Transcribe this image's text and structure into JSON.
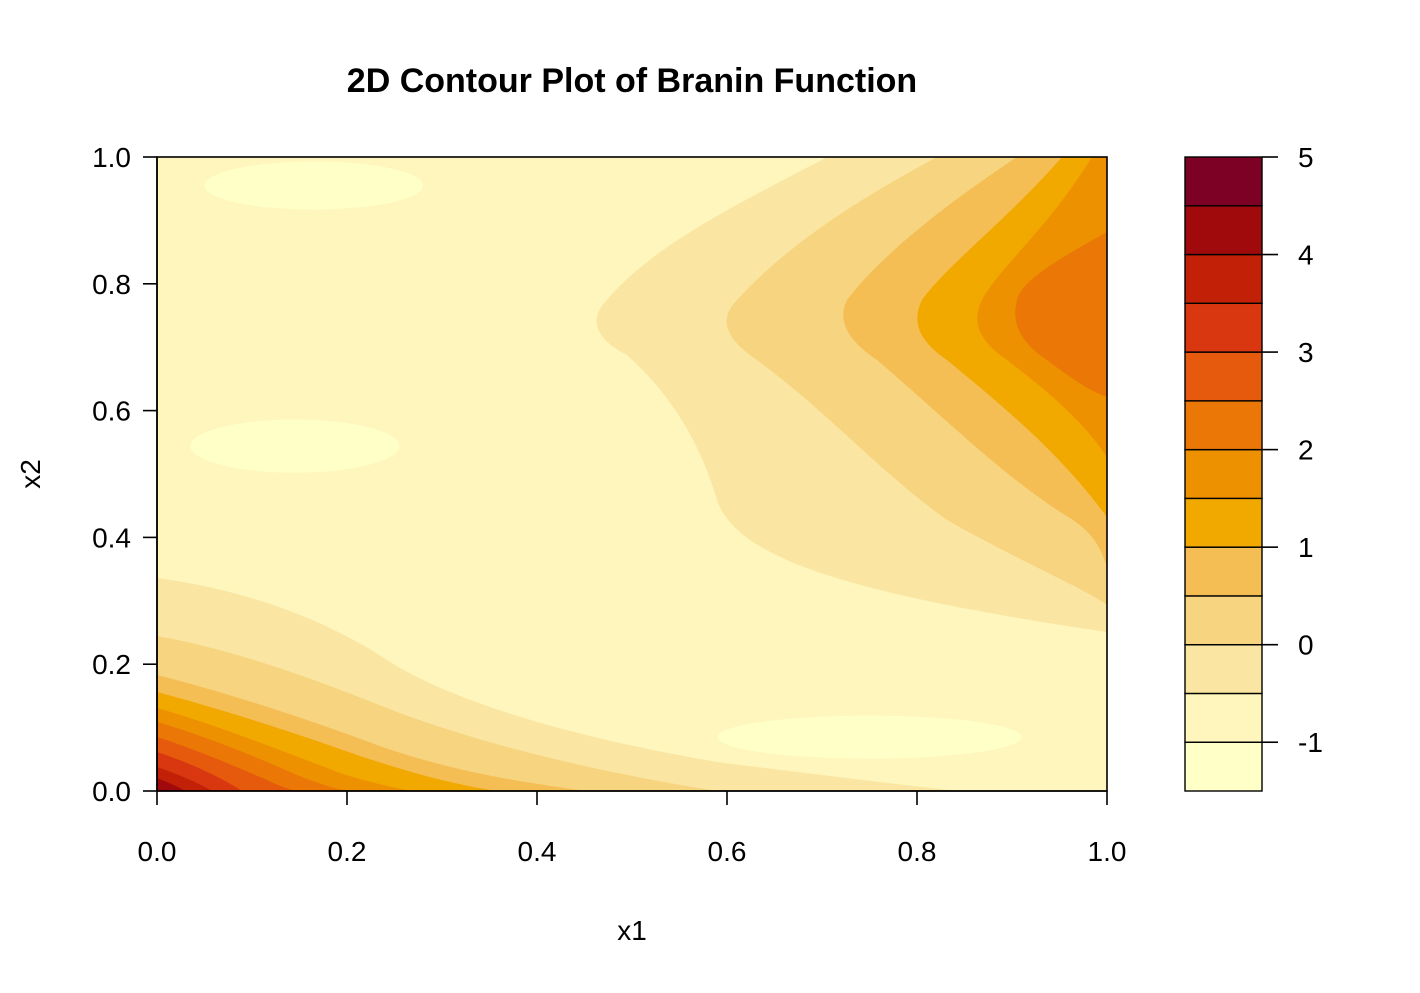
{
  "chart_data": {
    "type": "contour",
    "title": "2D Contour Plot of Branin Function",
    "xlabel": "x1",
    "ylabel": "x2",
    "xlim": [
      0,
      1
    ],
    "ylim": [
      0,
      1
    ],
    "x_ticks": [
      "0.0",
      "0.2",
      "0.4",
      "0.6",
      "0.8",
      "1.0"
    ],
    "y_ticks": [
      "0.0",
      "0.2",
      "0.4",
      "0.6",
      "0.8",
      "1.0"
    ],
    "legend": {
      "placement": "right",
      "range": [
        -1.5,
        5
      ],
      "breaks": [
        -1.5,
        -1,
        -0.5,
        0,
        0.5,
        1,
        1.5,
        2,
        2.5,
        3,
        3.5,
        4,
        4.5,
        5
      ],
      "tick_values": [
        -1,
        0,
        1,
        2,
        3,
        4,
        5
      ],
      "tick_labels": [
        "-1",
        "0",
        "1",
        "2",
        "3",
        "4",
        "5"
      ],
      "colors": [
        "#FFFFC8",
        "#FEF6BC",
        "#FAE6A2",
        "#F7D580",
        "#F4BE55",
        "#F1A900",
        "#ED9100",
        "#EA7706",
        "#E55A0C",
        "#D93710",
        "#C22007",
        "#A10A0C",
        "#7D0025"
      ]
    },
    "levels": [
      {
        "range": [
          -1.5,
          -1
        ],
        "color": "#FFFFC8",
        "regions": [
          {
            "name": "top-left-low",
            "center": [
              0.165,
              0.955
            ],
            "rx": 0.115,
            "ry": 0.038
          },
          {
            "name": "mid-left-low",
            "center": [
              0.145,
              0.544
            ],
            "rx": 0.11,
            "ry": 0.042
          },
          {
            "name": "bottom-right-low",
            "center": [
              0.75,
              0.085
            ],
            "rx": 0.16,
            "ry": 0.034
          }
        ]
      }
    ]
  }
}
